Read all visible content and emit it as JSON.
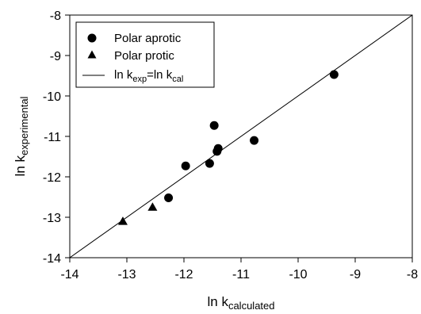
{
  "chart_data": {
    "type": "scatter",
    "xlabel_main": "ln k",
    "xlabel_sub": "calculated",
    "ylabel_main": "ln k",
    "ylabel_sub": "experimental",
    "xlim": [
      -14,
      -8
    ],
    "ylim": [
      -14,
      -8
    ],
    "x_ticks": [
      -14,
      -13,
      -12,
      -11,
      -10,
      -9,
      -8
    ],
    "y_ticks": [
      -14,
      -13,
      -12,
      -11,
      -10,
      -9,
      -8
    ],
    "x_tick_labels": [
      "-14",
      "-13",
      "-12",
      "-11",
      "-10",
      "-9",
      "-8"
    ],
    "y_tick_labels": [
      "-14",
      "-13",
      "-12",
      "-11",
      "-10",
      "-9",
      "-8"
    ],
    "grid": false,
    "legend_position": "top-left",
    "series": [
      {
        "name": "Polar aprotic",
        "marker": "circle",
        "x": [
          -12.27,
          -11.97,
          -11.55,
          -11.47,
          -11.42,
          -11.4,
          -10.77,
          -9.37
        ],
        "y": [
          -12.52,
          -11.73,
          -11.67,
          -10.73,
          -11.37,
          -11.3,
          -11.1,
          -9.47
        ]
      },
      {
        "name": "Polar protic",
        "marker": "triangle",
        "x": [
          -13.07,
          -12.55
        ],
        "y": [
          -13.1,
          -12.75
        ]
      }
    ],
    "reference_line": {
      "name_parts": [
        "ln k",
        "exp",
        "=ln k",
        "cal"
      ],
      "x": [
        -14,
        -8
      ],
      "y": [
        -14,
        -8
      ]
    }
  }
}
